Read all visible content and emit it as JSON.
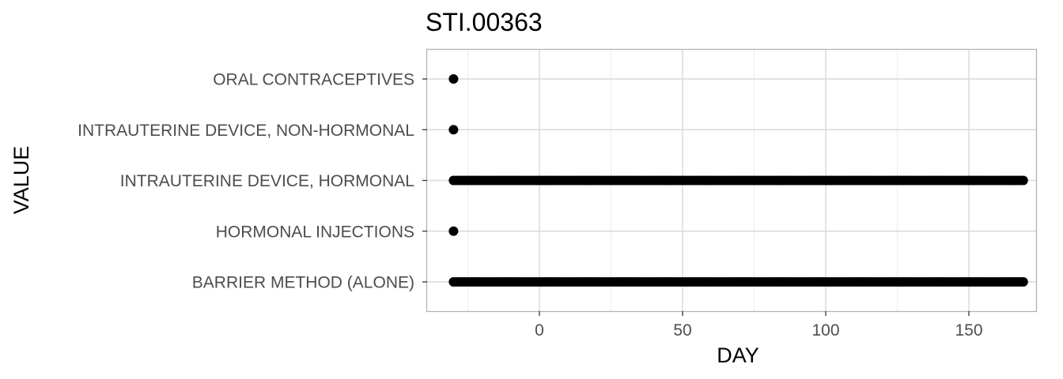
{
  "chart_data": {
    "type": "scatter",
    "title": "STI.00363",
    "xlabel": "DAY",
    "ylabel": "VALUE",
    "xlim": [
      -40,
      172
    ],
    "x_ticks": [
      0,
      50,
      100,
      150
    ],
    "x_tick_labels": [
      "0",
      "50",
      "100",
      "150"
    ],
    "categories": [
      "BARRIER METHOD (ALONE)",
      "HORMONAL INJECTIONS",
      "INTRAUTERINE DEVICE, HORMONAL",
      "INTRAUTERINE DEVICE, NON-HORMONAL",
      "ORAL CONTRACEPTIVES"
    ],
    "grid": true,
    "legend": "none",
    "point_color": "#000000",
    "series": [
      {
        "category": "ORAL CONTRACEPTIVES",
        "x_start": -30,
        "x_end": -30,
        "step": 1
      },
      {
        "category": "INTRAUTERINE DEVICE, NON-HORMONAL",
        "x_start": -30,
        "x_end": -30,
        "step": 1
      },
      {
        "category": "INTRAUTERINE DEVICE, HORMONAL",
        "x_start": -30,
        "x_end": 169,
        "step": 1
      },
      {
        "category": "HORMONAL INJECTIONS",
        "x_start": -30,
        "x_end": -30,
        "step": 1
      },
      {
        "category": "BARRIER METHOD (ALONE)",
        "x_start": -30,
        "x_end": 169,
        "step": 1
      }
    ]
  }
}
